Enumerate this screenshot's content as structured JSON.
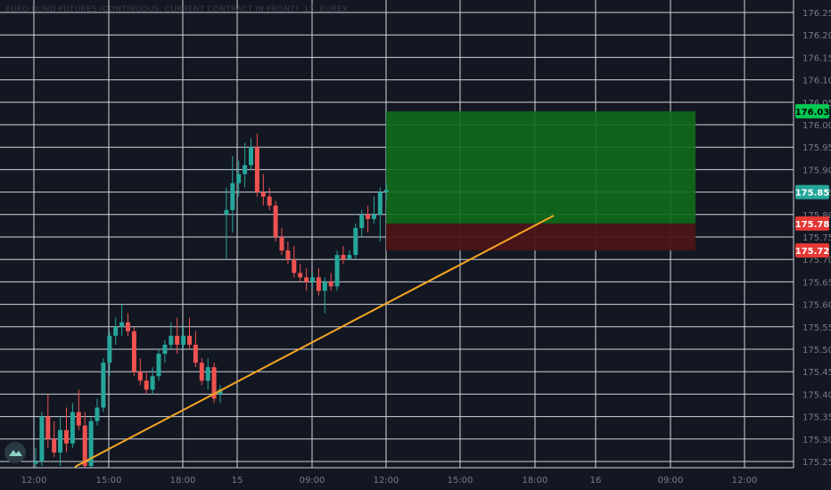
{
  "header": {
    "symbol_title": "EURO BUND FUTURES (CONTINUOUS: CURRENT CONTRACT IN FRONT), 15, EUREX"
  },
  "colors": {
    "background": "#131722",
    "grid": "#cfd3da",
    "up": "#26a69a",
    "down": "#ef5350",
    "trendline": "#f5a623",
    "target_zone": "#0f6b1a",
    "stop_zone": "#4a1418",
    "price_label_green": "#00c853",
    "price_label_current": "#26a69a",
    "price_label_red": "#e53935"
  },
  "chart_data": {
    "type": "candlestick",
    "grid": true,
    "y_axis": {
      "position": "right",
      "ticks": [
        "176.25",
        "176.20",
        "176.15",
        "176.10",
        "176.05",
        "176.00",
        "175.95",
        "175.90",
        "175.85",
        "175.80",
        "175.75",
        "175.70",
        "175.65",
        "175.60",
        "175.55",
        "175.50",
        "175.45",
        "175.40",
        "175.35",
        "175.30",
        "175.25"
      ]
    },
    "x_axis": {
      "ticks": [
        "12:00",
        "15:00",
        "18:00",
        "15",
        "09:00",
        "12:00",
        "15:00",
        "18:00",
        "16",
        "09:00",
        "12:00"
      ]
    },
    "candles": [
      {
        "o": 175.245,
        "h": 175.28,
        "l": 175.235,
        "c": 175.25
      },
      {
        "o": 175.25,
        "h": 175.36,
        "l": 175.24,
        "c": 175.35
      },
      {
        "o": 175.35,
        "h": 175.4,
        "l": 175.28,
        "c": 175.3
      },
      {
        "o": 175.3,
        "h": 175.34,
        "l": 175.26,
        "c": 175.27
      },
      {
        "o": 175.27,
        "h": 175.35,
        "l": 175.24,
        "c": 175.32
      },
      {
        "o": 175.32,
        "h": 175.37,
        "l": 175.27,
        "c": 175.29
      },
      {
        "o": 175.29,
        "h": 175.38,
        "l": 175.28,
        "c": 175.36
      },
      {
        "o": 175.36,
        "h": 175.41,
        "l": 175.32,
        "c": 175.33
      },
      {
        "o": 175.33,
        "h": 175.36,
        "l": 175.22,
        "c": 175.24
      },
      {
        "o": 175.24,
        "h": 175.35,
        "l": 175.22,
        "c": 175.34
      },
      {
        "o": 175.34,
        "h": 175.39,
        "l": 175.33,
        "c": 175.37
      },
      {
        "o": 175.37,
        "h": 175.48,
        "l": 175.36,
        "c": 175.47
      },
      {
        "o": 175.47,
        "h": 175.54,
        "l": 175.44,
        "c": 175.53
      },
      {
        "o": 175.53,
        "h": 175.57,
        "l": 175.51,
        "c": 175.55
      },
      {
        "o": 175.55,
        "h": 175.6,
        "l": 175.53,
        "c": 175.56
      },
      {
        "o": 175.56,
        "h": 175.58,
        "l": 175.53,
        "c": 175.54
      },
      {
        "o": 175.54,
        "h": 175.55,
        "l": 175.44,
        "c": 175.45
      },
      {
        "o": 175.45,
        "h": 175.48,
        "l": 175.42,
        "c": 175.43
      },
      {
        "o": 175.43,
        "h": 175.45,
        "l": 175.4,
        "c": 175.41
      },
      {
        "o": 175.41,
        "h": 175.46,
        "l": 175.4,
        "c": 175.44
      },
      {
        "o": 175.44,
        "h": 175.5,
        "l": 175.43,
        "c": 175.49
      },
      {
        "o": 175.49,
        "h": 175.52,
        "l": 175.47,
        "c": 175.51
      },
      {
        "o": 175.51,
        "h": 175.56,
        "l": 175.5,
        "c": 175.53
      },
      {
        "o": 175.53,
        "h": 175.57,
        "l": 175.49,
        "c": 175.51
      },
      {
        "o": 175.51,
        "h": 175.55,
        "l": 175.5,
        "c": 175.53
      },
      {
        "o": 175.53,
        "h": 175.57,
        "l": 175.5,
        "c": 175.51
      },
      {
        "o": 175.51,
        "h": 175.54,
        "l": 175.46,
        "c": 175.47
      },
      {
        "o": 175.47,
        "h": 175.48,
        "l": 175.42,
        "c": 175.43
      },
      {
        "o": 175.43,
        "h": 175.48,
        "l": 175.41,
        "c": 175.46
      },
      {
        "o": 175.46,
        "h": 175.47,
        "l": 175.38,
        "c": 175.39
      },
      {
        "o": 175.4,
        "h": 175.42,
        "l": 175.38,
        "c": 175.41
      },
      {
        "o": 175.8,
        "h": 175.86,
        "l": 175.7,
        "c": 175.81
      },
      {
        "o": 175.81,
        "h": 175.93,
        "l": 175.76,
        "c": 175.87
      },
      {
        "o": 175.87,
        "h": 175.92,
        "l": 175.84,
        "c": 175.89
      },
      {
        "o": 175.89,
        "h": 175.96,
        "l": 175.86,
        "c": 175.91
      },
      {
        "o": 175.91,
        "h": 175.97,
        "l": 175.9,
        "c": 175.95
      },
      {
        "o": 175.95,
        "h": 175.98,
        "l": 175.84,
        "c": 175.85
      },
      {
        "o": 175.85,
        "h": 175.89,
        "l": 175.82,
        "c": 175.84
      },
      {
        "o": 175.84,
        "h": 175.86,
        "l": 175.81,
        "c": 175.82
      },
      {
        "o": 175.82,
        "h": 175.83,
        "l": 175.74,
        "c": 175.75
      },
      {
        "o": 175.75,
        "h": 175.77,
        "l": 175.71,
        "c": 175.72
      },
      {
        "o": 175.72,
        "h": 175.74,
        "l": 175.69,
        "c": 175.7
      },
      {
        "o": 175.7,
        "h": 175.73,
        "l": 175.66,
        "c": 175.67
      },
      {
        "o": 175.67,
        "h": 175.69,
        "l": 175.65,
        "c": 175.66
      },
      {
        "o": 175.66,
        "h": 175.68,
        "l": 175.63,
        "c": 175.65
      },
      {
        "o": 175.65,
        "h": 175.67,
        "l": 175.64,
        "c": 175.66
      },
      {
        "o": 175.66,
        "h": 175.68,
        "l": 175.62,
        "c": 175.63
      },
      {
        "o": 175.63,
        "h": 175.66,
        "l": 175.58,
        "c": 175.65
      },
      {
        "o": 175.65,
        "h": 175.67,
        "l": 175.63,
        "c": 175.64
      },
      {
        "o": 175.64,
        "h": 175.72,
        "l": 175.63,
        "c": 175.71
      },
      {
        "o": 175.71,
        "h": 175.73,
        "l": 175.69,
        "c": 175.7
      },
      {
        "o": 175.7,
        "h": 175.72,
        "l": 175.7,
        "c": 175.71
      },
      {
        "o": 175.71,
        "h": 175.78,
        "l": 175.7,
        "c": 175.77
      },
      {
        "o": 175.77,
        "h": 175.81,
        "l": 175.75,
        "c": 175.8
      },
      {
        "o": 175.8,
        "h": 175.82,
        "l": 175.76,
        "c": 175.79
      },
      {
        "o": 175.79,
        "h": 175.84,
        "l": 175.78,
        "c": 175.8
      },
      {
        "o": 175.8,
        "h": 175.86,
        "l": 175.74,
        "c": 175.85
      },
      {
        "o": 175.85,
        "h": 175.87,
        "l": 175.83,
        "c": 175.855
      }
    ],
    "trendline": {
      "label": "",
      "start": {
        "index": 6,
        "price": 175.22
      },
      "end": {
        "index": 105,
        "price": 175.795
      }
    },
    "long_position": {
      "entry": 175.78,
      "target": 176.03,
      "stop": 175.72,
      "start_index": 57,
      "end_index": 98
    },
    "price_labels": [
      {
        "text": "176.03",
        "price": 176.03,
        "kind": "target"
      },
      {
        "text": "175.85",
        "price": 175.85,
        "kind": "current"
      },
      {
        "text": "175.78",
        "price": 175.78,
        "kind": "entry"
      },
      {
        "text": "175.72",
        "price": 175.72,
        "kind": "stop"
      }
    ]
  }
}
